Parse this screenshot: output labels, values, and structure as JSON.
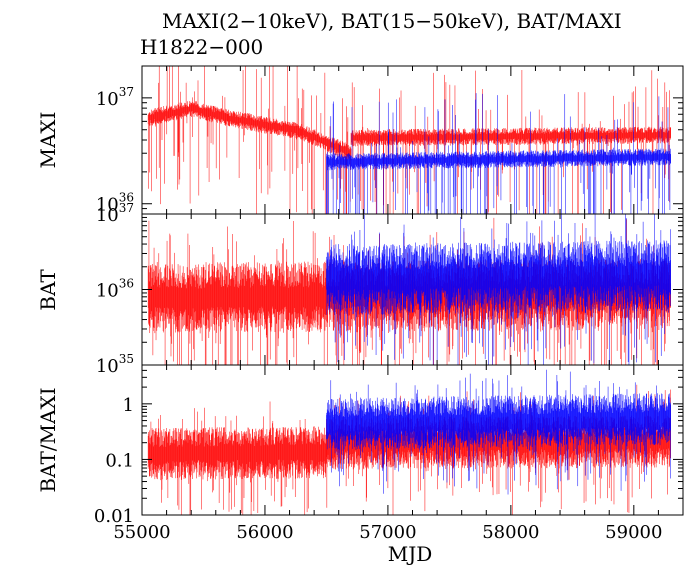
{
  "figure": {
    "title": "MAXI(2−10keV), BAT(15−50keV), BAT/MAXI",
    "subtitle": "H1822−000",
    "xlabel": "MJD"
  },
  "chart_data": [
    {
      "type": "line",
      "panel": "top",
      "ylabel": "MAXI",
      "scale": "log",
      "xlim": [
        55000,
        59400
      ],
      "ylim": [
        800000000000000000000000000000000000,
        20000000000000000000000000000000000000
      ],
      "yticks": [
        {
          "value": 10000000000000000000000000000000000000,
          "base": "10",
          "exp": "37"
        },
        {
          "value": 1000000000000000000000000000000000000,
          "base": "10",
          "exp": "36"
        }
      ],
      "series": [
        {
          "color": "#ff0000",
          "segments": [
            {
              "x": [
                55050,
                55400,
                55700
              ],
              "y": [
                6500000000000000000000000000000000000,
                8000000000000000000000000000000000000,
                6500000000000000000000000000000000000
              ]
            },
            {
              "x": [
                55700,
                56300
              ],
              "y": [
                6500000000000000000000000000000000000,
                4800000000000000000000000000000000000
              ]
            },
            {
              "x": [
                56300,
                56700
              ],
              "y": [
                4800000000000000000000000000000000000,
                3000000000000000000000000000000000000
              ]
            },
            {
              "x": [
                56700,
                59300
              ],
              "y": [
                4200000000000000000000000000000000000,
                4500000000000000000000000000000000000
              ]
            }
          ]
        },
        {
          "color": "#0000ff",
          "segments": [
            {
              "x": [
                56500,
                59300
              ],
              "y": [
                2500000000000000000000000000000000000,
                2800000000000000000000000000000000000
              ]
            }
          ]
        }
      ]
    },
    {
      "type": "line",
      "panel": "middle",
      "ylabel": "BAT",
      "scale": "log",
      "xlim": [
        55000,
        59400
      ],
      "ylim": [
        100000000000000000000000000000000000,
        10000000000000000000000000000000000000
      ],
      "yticks": [
        {
          "value": 10000000000000000000000000000000000000,
          "base": "10",
          "exp": "37"
        },
        {
          "value": 1000000000000000000000000000000000000,
          "base": "10",
          "exp": "36"
        },
        {
          "value": 100000000000000000000000000000000000,
          "base": "10",
          "exp": "35"
        }
      ],
      "series": [
        {
          "color": "#ff0000",
          "segments": [
            {
              "x": [
                55050,
                59300
              ],
              "y": [
                800000000000000000000000000000000000,
                900000000000000000000000000000000000
              ]
            }
          ]
        },
        {
          "color": "#0000ff",
          "segments": [
            {
              "x": [
                56500,
                59300
              ],
              "y": [
                1400000000000000000000000000000000000,
                1600000000000000000000000000000000000
              ]
            }
          ]
        }
      ]
    },
    {
      "type": "line",
      "panel": "bottom",
      "ylabel": "BAT/MAXI",
      "scale": "log",
      "xlim": [
        55000,
        59400
      ],
      "ylim": [
        0.01,
        5
      ],
      "yticks": [
        {
          "value": 1,
          "label": "1"
        },
        {
          "value": 0.1,
          "label": "0.1"
        },
        {
          "value": 0.01,
          "label": "0.01"
        }
      ],
      "xticks": [
        55000,
        56000,
        57000,
        58000,
        59000
      ],
      "series": [
        {
          "color": "#ff0000",
          "segments": [
            {
              "x": [
                55050,
                56500
              ],
              "y": [
                0.13,
                0.14
              ]
            },
            {
              "x": [
                56500,
                59300
              ],
              "y": [
                0.2,
                0.22
              ]
            }
          ]
        },
        {
          "color": "#0000ff",
          "segments": [
            {
              "x": [
                56500,
                59300
              ],
              "y": [
                0.45,
                0.55
              ]
            }
          ]
        }
      ]
    }
  ]
}
